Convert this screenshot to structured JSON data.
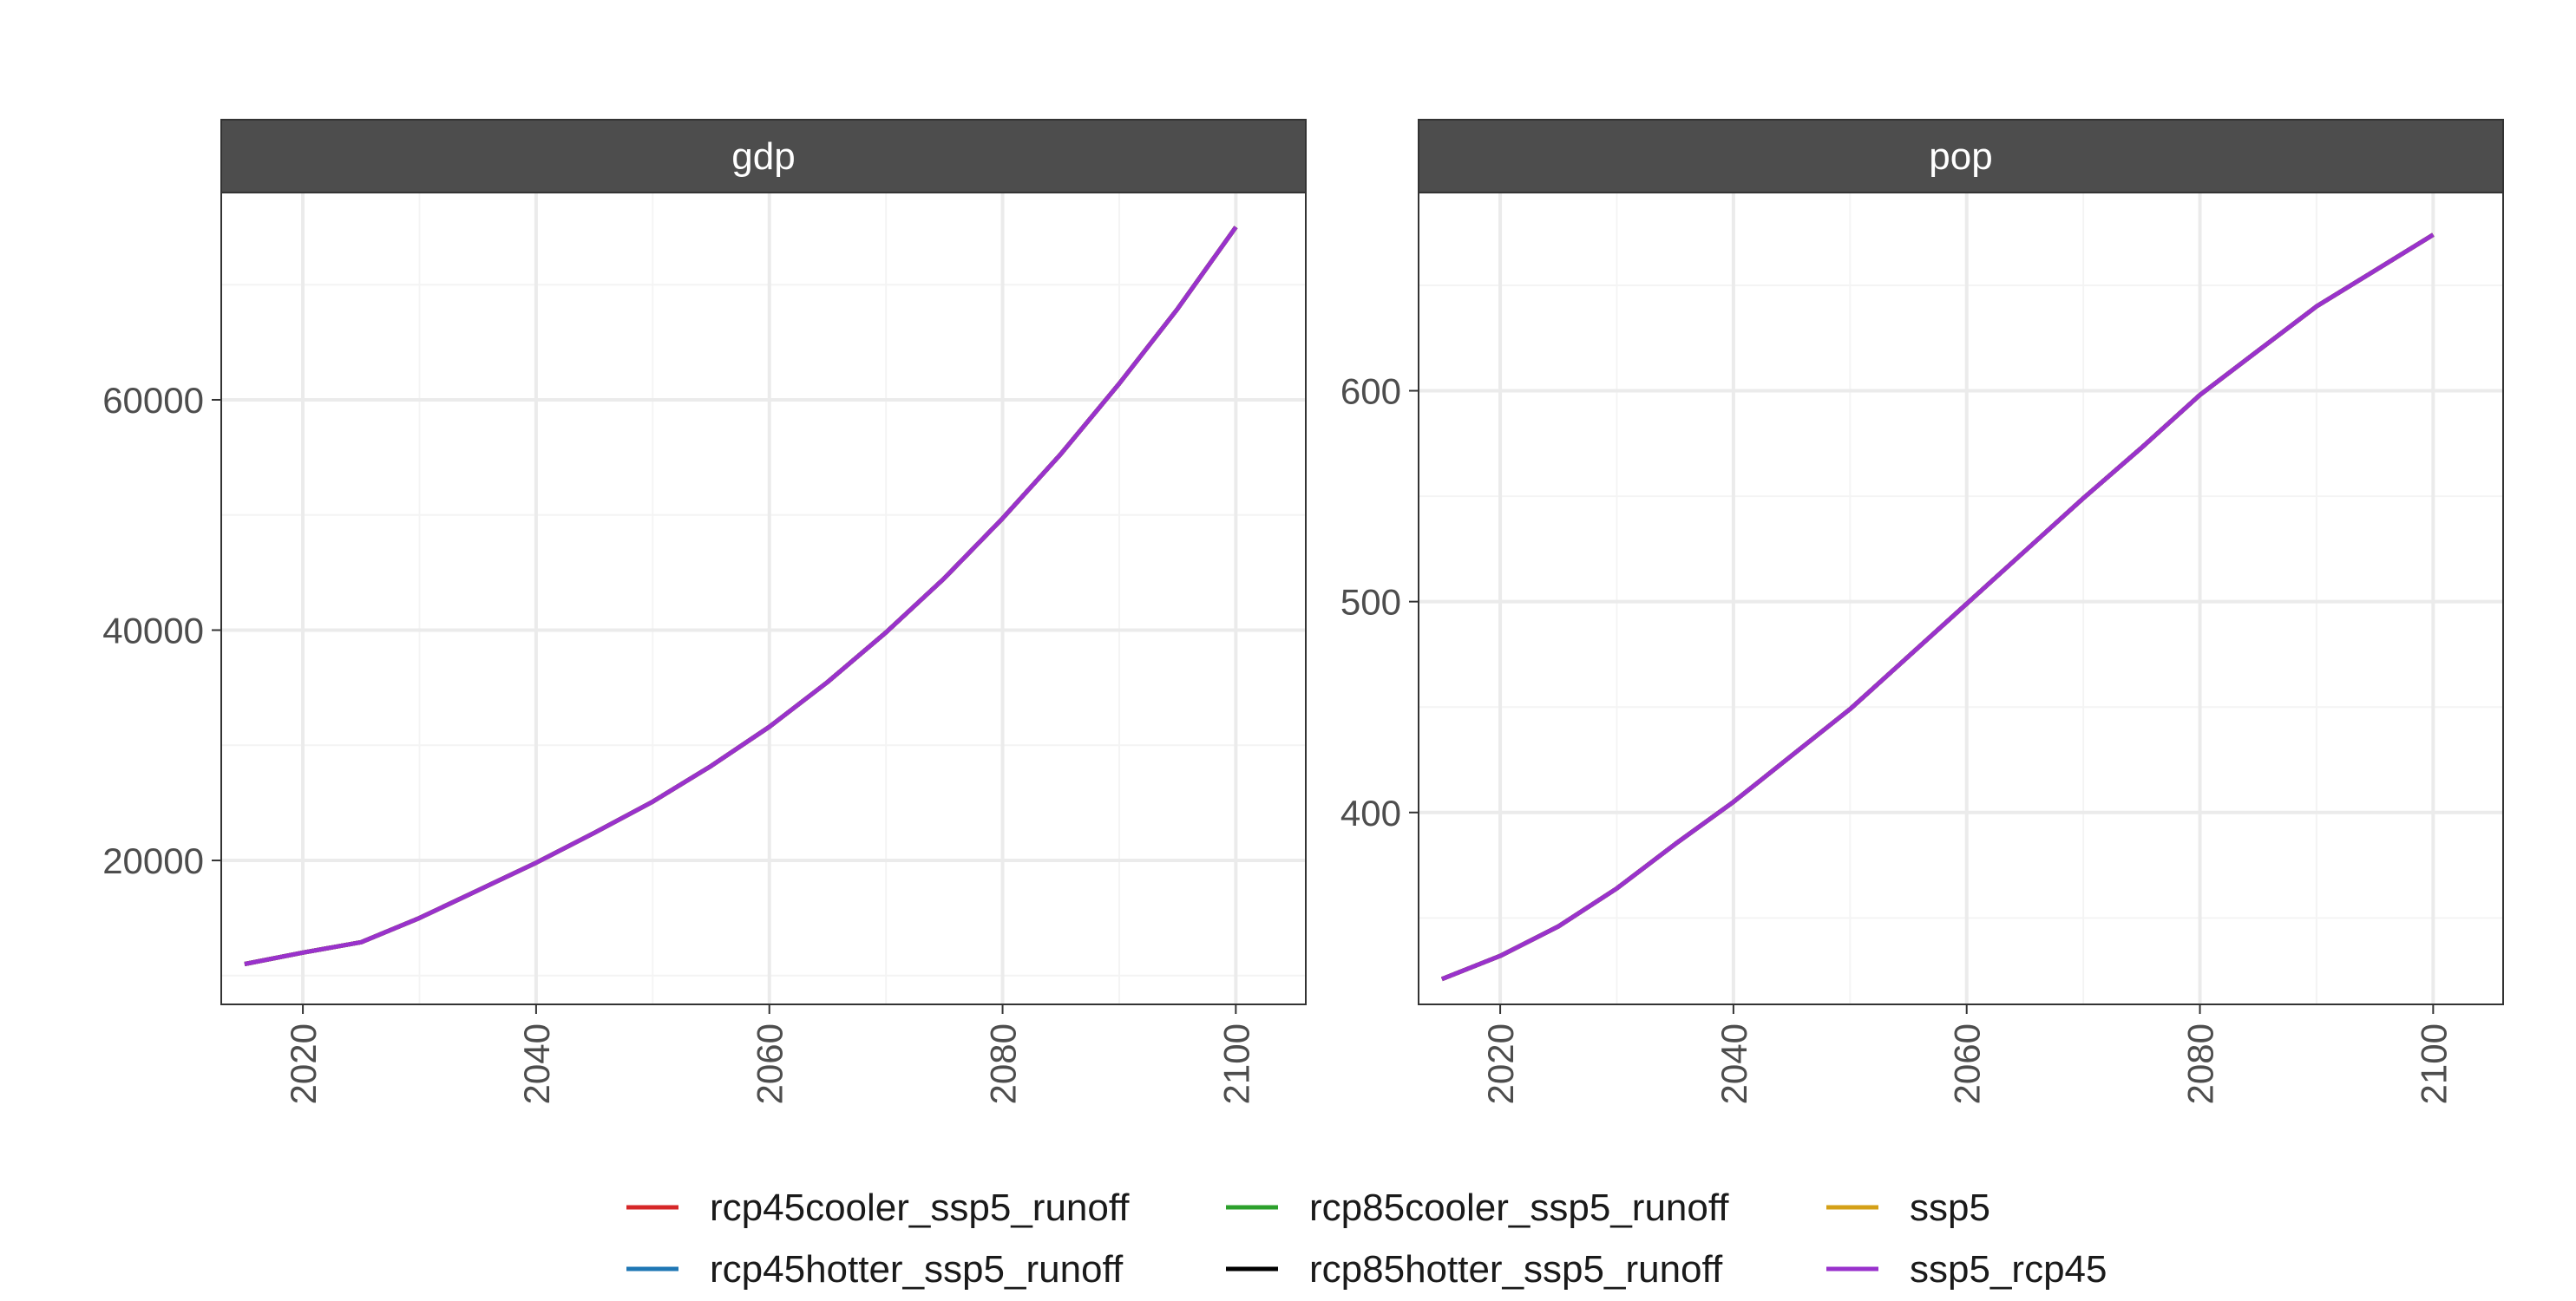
{
  "chart_data": [
    {
      "type": "line",
      "panel": "gdp",
      "title": "",
      "xlabel": "",
      "ylabel": "",
      "xlim": [
        2013,
        2106
      ],
      "ylim": [
        7500,
        78000
      ],
      "x_ticks": [
        2020,
        2040,
        2060,
        2080,
        2100
      ],
      "y_ticks": [
        20000,
        40000,
        60000
      ],
      "grid": true,
      "x": [
        2015,
        2020,
        2025,
        2030,
        2035,
        2040,
        2045,
        2050,
        2055,
        2060,
        2065,
        2070,
        2075,
        2080,
        2085,
        2090,
        2095,
        2100
      ],
      "series": [
        {
          "name": "rcp45cooler_ssp5_runoff",
          "values": [
            11000,
            12000,
            12900,
            15000,
            17400,
            19800,
            22400,
            25100,
            28200,
            31600,
            35500,
            39800,
            44500,
            49700,
            55300,
            61400,
            67900,
            75000
          ]
        },
        {
          "name": "rcp45hotter_ssp5_runoff",
          "values": [
            11000,
            12000,
            12900,
            15000,
            17400,
            19800,
            22400,
            25100,
            28200,
            31600,
            35500,
            39800,
            44500,
            49700,
            55300,
            61400,
            67900,
            75000
          ]
        },
        {
          "name": "rcp85cooler_ssp5_runoff",
          "values": [
            11000,
            12000,
            12900,
            15000,
            17400,
            19800,
            22400,
            25100,
            28200,
            31600,
            35500,
            39800,
            44500,
            49700,
            55300,
            61400,
            67900,
            75000
          ]
        },
        {
          "name": "rcp85hotter_ssp5_runoff",
          "values": [
            11000,
            12000,
            12900,
            15000,
            17400,
            19800,
            22400,
            25100,
            28200,
            31600,
            35500,
            39800,
            44500,
            49700,
            55300,
            61400,
            67900,
            75000
          ]
        },
        {
          "name": "ssp5",
          "values": [
            11000,
            12000,
            12900,
            15000,
            17400,
            19800,
            22400,
            25100,
            28200,
            31600,
            35500,
            39800,
            44500,
            49700,
            55300,
            61400,
            67900,
            75000
          ]
        },
        {
          "name": "ssp5_rcp45",
          "values": [
            11000,
            12000,
            12900,
            15000,
            17400,
            19800,
            22400,
            25100,
            28200,
            31600,
            35500,
            39800,
            44500,
            49700,
            55300,
            61400,
            67900,
            75000
          ]
        }
      ]
    },
    {
      "type": "line",
      "panel": "pop",
      "title": "",
      "xlabel": "",
      "ylabel": "",
      "xlim": [
        2013,
        2106
      ],
      "ylim": [
        309,
        694
      ],
      "x_ticks": [
        2020,
        2040,
        2060,
        2080,
        2100
      ],
      "y_ticks": [
        400,
        500,
        600
      ],
      "grid": true,
      "x": [
        2015,
        2020,
        2025,
        2030,
        2035,
        2040,
        2045,
        2050,
        2055,
        2060,
        2065,
        2070,
        2075,
        2080,
        2085,
        2090,
        2095,
        2100
      ],
      "series": [
        {
          "name": "rcp45cooler_ssp5_runoff",
          "values": [
            321,
            332,
            346,
            364,
            385,
            405,
            427,
            449,
            474,
            499,
            524,
            549,
            573,
            598,
            619,
            640,
            657,
            674
          ]
        },
        {
          "name": "rcp45hotter_ssp5_runoff",
          "values": [
            321,
            332,
            346,
            364,
            385,
            405,
            427,
            449,
            474,
            499,
            524,
            549,
            573,
            598,
            619,
            640,
            657,
            674
          ]
        },
        {
          "name": "rcp85cooler_ssp5_runoff",
          "values": [
            321,
            332,
            346,
            364,
            385,
            405,
            427,
            449,
            474,
            499,
            524,
            549,
            573,
            598,
            619,
            640,
            657,
            674
          ]
        },
        {
          "name": "rcp85hotter_ssp5_runoff",
          "values": [
            321,
            332,
            346,
            364,
            385,
            405,
            427,
            449,
            474,
            499,
            524,
            549,
            573,
            598,
            619,
            640,
            657,
            674
          ]
        },
        {
          "name": "ssp5",
          "values": [
            321,
            332,
            346,
            364,
            385,
            405,
            427,
            449,
            474,
            499,
            524,
            549,
            573,
            598,
            619,
            640,
            657,
            674
          ]
        },
        {
          "name": "ssp5_rcp45",
          "values": [
            321,
            332,
            346,
            364,
            385,
            405,
            427,
            449,
            474,
            499,
            524,
            549,
            573,
            598,
            619,
            640,
            657,
            674
          ]
        }
      ]
    }
  ],
  "legend": {
    "placement": "bottom",
    "items": [
      {
        "name": "rcp45cooler_ssp5_runoff",
        "color": "#d62728"
      },
      {
        "name": "rcp45hotter_ssp5_runoff",
        "color": "#1f77b4"
      },
      {
        "name": "rcp85cooler_ssp5_runoff",
        "color": "#2ca02c"
      },
      {
        "name": "rcp85hotter_ssp5_runoff",
        "color": "#000000"
      },
      {
        "name": "ssp5",
        "color": "#d4a017"
      },
      {
        "name": "ssp5_rcp45",
        "color": "#9932cc"
      }
    ]
  },
  "colors": {
    "strip_background": "#4d4d4d",
    "grid_major": "#ebebeb",
    "grid_minor": "#f4f4f4",
    "panel_border": "#333333"
  }
}
